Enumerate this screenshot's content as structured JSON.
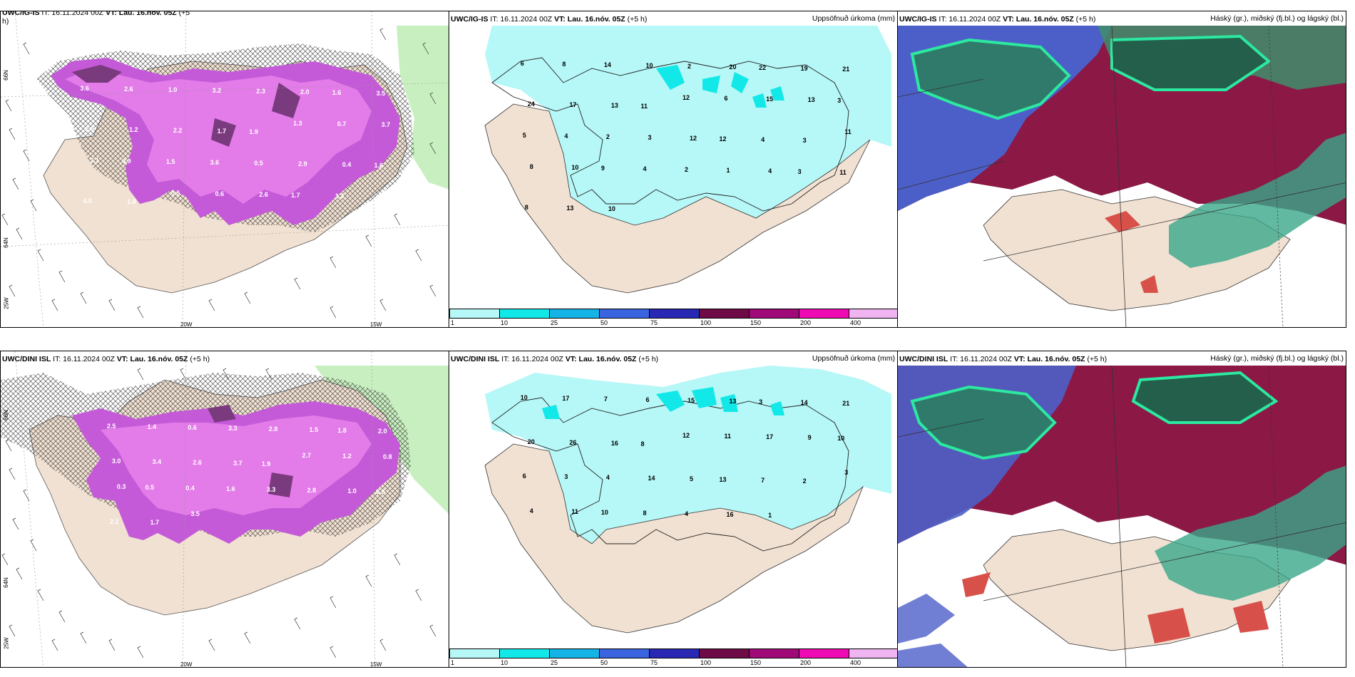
{
  "panels": {
    "p1": {
      "header_model": "UWC/IG-IS",
      "header_it": "IT: 16.11.2024 00Z",
      "header_vt": "VT: Lau. 16.nóv. 05Z",
      "header_lead": "(+5",
      "header_wrap": "h)"
    },
    "p2": {
      "header_model": "UWC/IG-IS",
      "header_it": "IT: 16.11.2024 00Z",
      "header_vt": "VT: Lau. 16.nóv. 05Z",
      "header_lead": "(+5 h)",
      "right_title": "Uppsöfnuð úrkoma (mm)"
    },
    "p3": {
      "header_model": "UWC/IG-IS",
      "header_it": "IT: 16.11.2024 00Z",
      "header_vt": "VT: Lau. 16.nóv. 05Z",
      "header_lead": "(+5 h)",
      "right_title": "Háský (gr.), miðský (fj.bl.) og lágský (bl.)"
    },
    "p4": {
      "header_model": "UWC/DINI ISL",
      "header_it": "IT: 16.11.2024 00Z",
      "header_vt": "VT: Lau. 16.nóv. 05Z",
      "header_lead": "(+5 h)"
    },
    "p5": {
      "header_model": "UWC/DINI ISL",
      "header_it": "IT: 16.11.2024 00Z",
      "header_vt": "VT: Lau. 16.nóv. 05Z",
      "header_lead": "(+5 h)",
      "right_title": "Uppsöfnuð úrkoma (mm)"
    },
    "p6": {
      "header_model": "UWC/DINI ISL",
      "header_it": "IT: 16.11.2024 00Z",
      "header_vt": "VT: Lau. 16.nóv. 05Z",
      "header_lead": "(+5 h)",
      "right_title": "Háský (gr.), miðský (fj.bl.) og lágský (bl.)"
    }
  },
  "axis_labels": {
    "lon_20w": "20W",
    "lon_15w": "15W",
    "lon_25w": "25W",
    "lat_66n": "66N",
    "lat_64n": "64N"
  },
  "colorbar": {
    "colors": [
      "#b6f7f7",
      "#13e8e8",
      "#14b4e6",
      "#3a64e0",
      "#2828b4",
      "#6e0a46",
      "#a00a78",
      "#f00ab4",
      "#f0b4f0"
    ],
    "ticks": [
      "1",
      "10",
      "25",
      "50",
      "75",
      "100",
      "150",
      "200",
      "400"
    ]
  },
  "snow_labels_top": [
    "3.6",
    "2.6",
    "1.0",
    "3.2",
    "2.3",
    "2.0",
    "1.6",
    "3.5",
    "2.8",
    "1.2",
    "2.2",
    "1.7",
    "1.9",
    "1.3",
    "0.7",
    "3.7",
    "2.1",
    "0.9",
    "1.5",
    "3.6",
    "0.5",
    "2.9",
    "0.4",
    "1.6",
    "4.0",
    "1.8",
    "0.5",
    "0.6",
    "2.6",
    "1.7",
    "1.3"
  ],
  "snow_labels_bottom": [
    "2.5",
    "1.4",
    "0.6",
    "3.3",
    "2.8",
    "1.5",
    "1.8",
    "2.0",
    "3.0",
    "3.4",
    "2.6",
    "3.7",
    "1.9",
    "2.7",
    "1.2",
    "0.8",
    "0.3",
    "0.5",
    "0.4",
    "1.6",
    "3.3",
    "2.8",
    "1.0",
    "0.9",
    "2.1",
    "1.7",
    "3.5"
  ],
  "precip_labels_top": [
    "6",
    "8",
    "14",
    "10",
    "2",
    "20",
    "22",
    "19",
    "21",
    "24",
    "17",
    "13",
    "11",
    "12",
    "6",
    "15",
    "13",
    "3",
    "5",
    "4",
    "2",
    "3",
    "12",
    "12",
    "4",
    "3",
    "11",
    "8",
    "10",
    "9",
    "4",
    "2",
    "1",
    "4",
    "3",
    "11",
    "8",
    "13",
    "10"
  ],
  "precip_labels_bottom": [
    "10",
    "17",
    "7",
    "6",
    "15",
    "13",
    "3",
    "14",
    "21",
    "20",
    "26",
    "16",
    "8",
    "12",
    "11",
    "17",
    "9",
    "10",
    "6",
    "3",
    "4",
    "14",
    "5",
    "13",
    "7",
    "2",
    "3",
    "4",
    "11",
    "10",
    "8",
    "4",
    "16",
    "1"
  ]
}
